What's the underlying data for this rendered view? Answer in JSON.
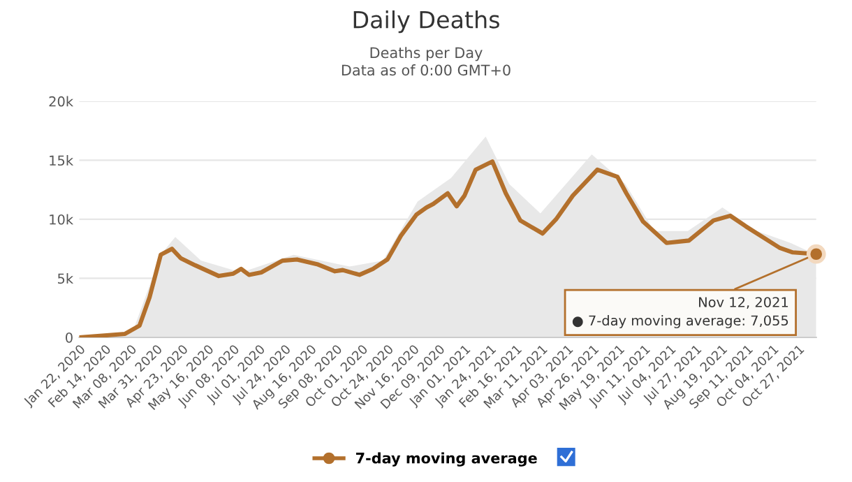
{
  "chart_data": {
    "type": "line",
    "title": "Daily Deaths",
    "subtitle": "Deaths per Day\nData as of 0:00 GMT+0",
    "series": [
      {
        "type": "area",
        "color": "#e8e8e8",
        "x": [
          "2020-01-22",
          "2020-03-10",
          "2020-04-04",
          "2020-04-17",
          "2020-05-10",
          "2020-06-15",
          "2020-08-01",
          "2020-09-20",
          "2020-10-20",
          "2020-11-20",
          "2020-12-20",
          "2021-01-20",
          "2021-02-10",
          "2021-03-10",
          "2021-04-25",
          "2021-05-25",
          "2021-06-20",
          "2021-07-20",
          "2021-08-20",
          "2021-09-20",
          "2021-10-20",
          "2021-11-12"
        ],
        "values": [
          0,
          500,
          7000,
          8500,
          6500,
          5500,
          7000,
          6000,
          6500,
          11500,
          13500,
          17000,
          13000,
          10500,
          15500,
          13000,
          9000,
          9000,
          11000,
          9000,
          8000,
          7000
        ]
      },
      {
        "name": "7-day moving average",
        "color": "#b3702c",
        "x": [
          "2020-01-22",
          "2020-03-03",
          "2020-03-16",
          "2020-03-25",
          "2020-04-04",
          "2020-04-14",
          "2020-04-22",
          "2020-05-05",
          "2020-05-26",
          "2020-06-08",
          "2020-06-15",
          "2020-06-22",
          "2020-07-03",
          "2020-07-22",
          "2020-08-04",
          "2020-08-22",
          "2020-09-07",
          "2020-09-14",
          "2020-09-29",
          "2020-10-11",
          "2020-10-24",
          "2020-11-05",
          "2020-11-19",
          "2020-11-28",
          "2020-12-04",
          "2020-12-17",
          "2020-12-25",
          "2021-01-01",
          "2021-01-11",
          "2021-01-26",
          "2021-02-07",
          "2021-02-20",
          "2021-03-12",
          "2021-03-24",
          "2021-04-08",
          "2021-04-30",
          "2021-05-18",
          "2021-05-26",
          "2021-06-10",
          "2021-07-01",
          "2021-07-21",
          "2021-08-12",
          "2021-08-27",
          "2021-09-10",
          "2021-10-10",
          "2021-10-22",
          "2021-11-12"
        ],
        "values": [
          0,
          300,
          1000,
          3400,
          7000,
          7500,
          6700,
          6100,
          5200,
          5400,
          5800,
          5300,
          5500,
          6500,
          6600,
          6200,
          5600,
          5700,
          5300,
          5800,
          6600,
          8600,
          10400,
          11000,
          11300,
          12200,
          11100,
          12000,
          14200,
          14900,
          12200,
          9900,
          8800,
          10000,
          12000,
          14200,
          13600,
          12200,
          9800,
          8000,
          8200,
          9900,
          10300,
          9400,
          7600,
          7200,
          7055
        ]
      }
    ],
    "xlim": [
      "2020-01-22",
      "2021-11-12"
    ],
    "xticks": [
      {
        "value": "2020-01-22",
        "label": "Jan 22, 2020"
      },
      {
        "value": "2020-02-14",
        "label": "Feb 14, 2020"
      },
      {
        "value": "2020-03-08",
        "label": "Mar 08, 2020"
      },
      {
        "value": "2020-03-31",
        "label": "Mar 31, 2020"
      },
      {
        "value": "2020-04-23",
        "label": "Apr 23, 2020"
      },
      {
        "value": "2020-05-16",
        "label": "May 16, 2020"
      },
      {
        "value": "2020-06-08",
        "label": "Jun 08, 2020"
      },
      {
        "value": "2020-07-01",
        "label": "Jul 01, 2020"
      },
      {
        "value": "2020-07-24",
        "label": "Jul 24, 2020"
      },
      {
        "value": "2020-08-16",
        "label": "Aug 16, 2020"
      },
      {
        "value": "2020-09-08",
        "label": "Sep 08, 2020"
      },
      {
        "value": "2020-10-01",
        "label": "Oct 01, 2020"
      },
      {
        "value": "2020-10-24",
        "label": "Oct 24, 2020"
      },
      {
        "value": "2020-11-16",
        "label": "Nov 16, 2020"
      },
      {
        "value": "2020-12-09",
        "label": "Dec 09, 2020"
      },
      {
        "value": "2021-01-01",
        "label": "Jan 01, 2021"
      },
      {
        "value": "2021-01-24",
        "label": "Jan 24, 2021"
      },
      {
        "value": "2021-02-16",
        "label": "Feb 16, 2021"
      },
      {
        "value": "2021-03-11",
        "label": "Mar 11, 2021"
      },
      {
        "value": "2021-04-03",
        "label": "Apr 03, 2021"
      },
      {
        "value": "2021-04-26",
        "label": "Apr 26, 2021"
      },
      {
        "value": "2021-05-19",
        "label": "May 19, 2021"
      },
      {
        "value": "2021-06-11",
        "label": "Jun 11, 2021"
      },
      {
        "value": "2021-07-04",
        "label": "Jul 04, 2021"
      },
      {
        "value": "2021-07-27",
        "label": "Jul 27, 2021"
      },
      {
        "value": "2021-08-19",
        "label": "Aug 19, 2021"
      },
      {
        "value": "2021-09-11",
        "label": "Sep 11, 2021"
      },
      {
        "value": "2021-10-04",
        "label": "Oct 04, 2021"
      },
      {
        "value": "2021-10-27",
        "label": "Oct 27, 2021"
      }
    ],
    "ylim": [
      0,
      20000
    ],
    "yticks": [
      0,
      {
        "value": 5000,
        "label": "5k"
      },
      {
        "value": 10000,
        "label": "10k"
      },
      {
        "value": 15000,
        "label": "15k"
      },
      {
        "value": 20000,
        "label": "20k"
      }
    ],
    "grid": "y",
    "legend": "bottom",
    "annotations": [
      {
        "text": "Nov 12, 2021\n● 7-day moving average: 7,055",
        "x": "2021-11-12",
        "y": 7055
      }
    ]
  }
}
